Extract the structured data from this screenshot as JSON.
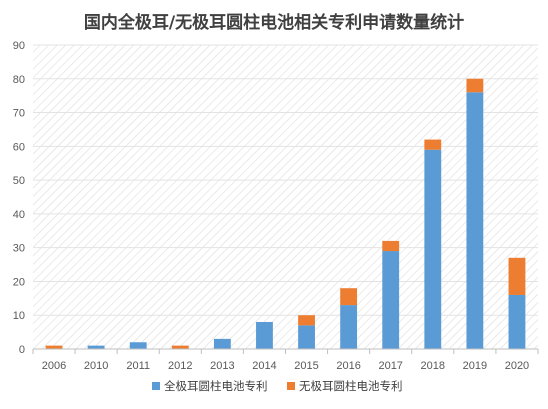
{
  "chart_data": {
    "type": "bar",
    "stacked": true,
    "title": "国内全极耳/无极耳圆柱电池相关专利申请数量统计",
    "xlabel": "",
    "ylabel": "",
    "ylim": [
      0,
      90
    ],
    "yticks": [
      0,
      10,
      20,
      30,
      40,
      50,
      60,
      70,
      80,
      90
    ],
    "grid": "hatched-background",
    "legend_position": "bottom",
    "categories": [
      "2006",
      "2010",
      "2011",
      "2012",
      "2013",
      "2014",
      "2015",
      "2016",
      "2017",
      "2018",
      "2019",
      "2020"
    ],
    "series": [
      {
        "name": "全极耳圆柱电池专利",
        "color": "#5B9BD5",
        "values": [
          0,
          1,
          2,
          0,
          3,
          8,
          7,
          13,
          29,
          59,
          76,
          16
        ]
      },
      {
        "name": "无极耳圆柱电池专利",
        "color": "#ED7D31",
        "values": [
          1,
          0,
          0,
          1,
          0,
          0,
          3,
          5,
          3,
          3,
          4,
          11
        ]
      }
    ]
  }
}
